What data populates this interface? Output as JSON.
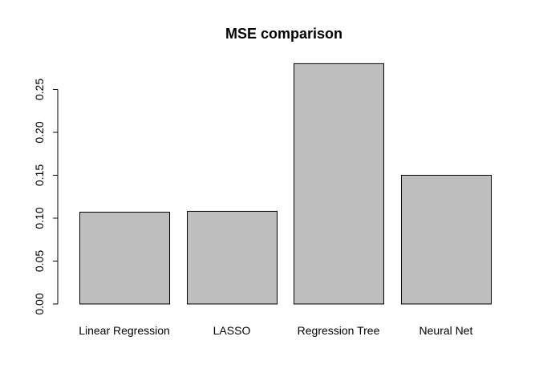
{
  "chart_data": {
    "type": "bar",
    "title": "MSE comparison",
    "xlabel": "",
    "ylabel": "",
    "categories": [
      "Linear Regression",
      "LASSO",
      "Regression Tree",
      "Neural Net"
    ],
    "values": [
      0.107,
      0.108,
      0.28,
      0.15
    ],
    "ylim": [
      0,
      0.28
    ],
    "yticks": [
      "0.00",
      "0.05",
      "0.10",
      "0.15",
      "0.20",
      "0.25"
    ],
    "grid": false,
    "bar_color": "#bebebe",
    "bar_border_color": "#000000"
  }
}
